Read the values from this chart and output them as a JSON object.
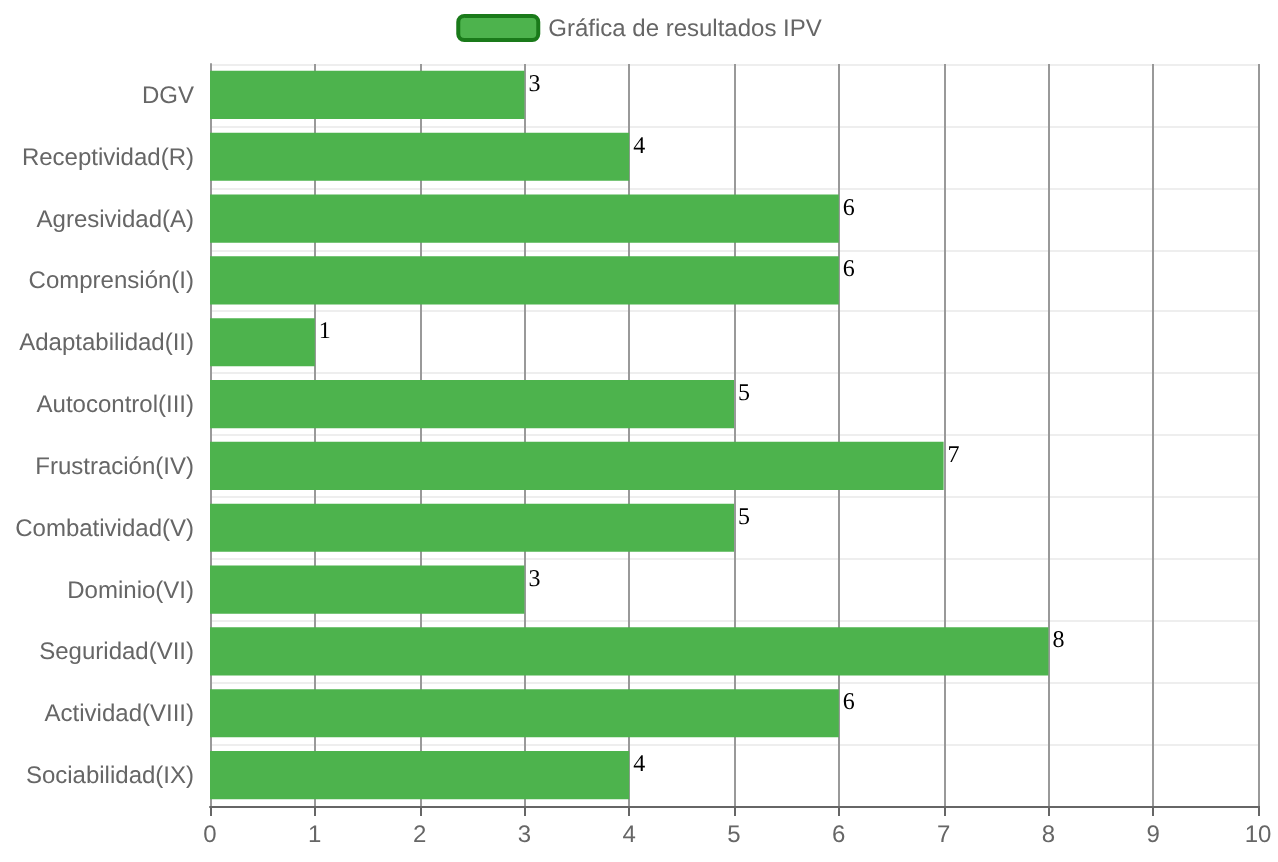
{
  "chart_data": {
    "type": "bar",
    "orientation": "horizontal",
    "categories": [
      "DGV",
      "Receptividad(R)",
      "Agresividad(A)",
      "Comprensión(I)",
      "Adaptabilidad(II)",
      "Autocontrol(III)",
      "Frustración(IV)",
      "Combatividad(V)",
      "Dominio(VI)",
      "Seguridad(VII)",
      "Actividad(VIII)",
      "Sociabilidad(IX)"
    ],
    "series": [
      {
        "name": "Gráfica de resultados IPV",
        "color": "#4db34d",
        "values": [
          3,
          4,
          6,
          6,
          1,
          5,
          7,
          5,
          3,
          8,
          6,
          4
        ]
      }
    ],
    "xlim": [
      0,
      10
    ],
    "xticks": [
      0,
      1,
      2,
      3,
      4,
      5,
      6,
      7,
      8,
      9,
      10
    ],
    "grid": true,
    "legend": "top",
    "data_labels": true
  }
}
